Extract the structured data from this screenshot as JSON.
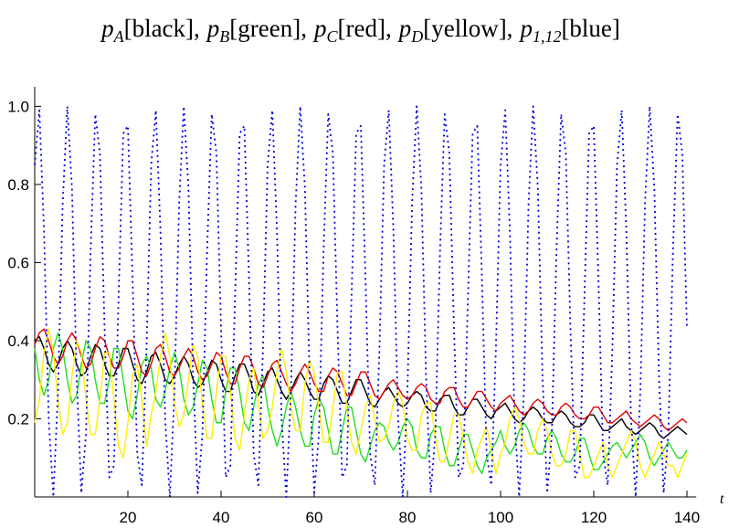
{
  "chart_data": {
    "type": "line",
    "title": [
      [
        "p",
        "A",
        "[black],"
      ],
      [
        "p",
        "B",
        "[green],"
      ],
      [
        "p",
        "C",
        "[red],"
      ],
      [
        "p",
        "D",
        "[yellow],"
      ],
      [
        "p",
        "1,12",
        "[blue]"
      ]
    ],
    "x_label": "t",
    "xlim": [
      0,
      142
    ],
    "xticks": [
      20,
      40,
      60,
      80,
      100,
      120,
      140
    ],
    "ylim": [
      0,
      1.05
    ],
    "yticks": [
      0.2,
      0.4,
      0.6,
      0.8,
      {
        "value": 1.0,
        "label": "1.0"
      }
    ],
    "x": [
      0,
      1,
      2,
      3,
      4,
      5,
      6,
      7,
      8,
      9,
      10,
      11,
      12,
      13,
      14,
      15,
      16,
      17,
      18,
      19,
      20,
      21,
      22,
      23,
      24,
      25,
      26,
      27,
      28,
      29,
      30,
      31,
      32,
      33,
      34,
      35,
      36,
      37,
      38,
      39,
      40,
      41,
      42,
      43,
      44,
      45,
      46,
      47,
      48,
      49,
      50,
      51,
      52,
      53,
      54,
      55,
      56,
      57,
      58,
      59,
      60,
      61,
      62,
      63,
      64,
      65,
      66,
      67,
      68,
      69,
      70,
      71,
      72,
      73,
      74,
      75,
      76,
      77,
      78,
      79,
      80,
      81,
      82,
      83,
      84,
      85,
      86,
      87,
      88,
      89,
      90,
      91,
      92,
      93,
      94,
      95,
      96,
      97,
      98,
      99,
      100,
      101,
      102,
      103,
      104,
      105,
      106,
      107,
      108,
      109,
      110,
      111,
      112,
      113,
      114,
      115,
      116,
      117,
      118,
      119,
      120,
      121,
      122,
      123,
      124,
      125,
      126,
      127,
      128,
      129,
      130,
      131,
      132,
      133,
      134,
      135,
      136,
      137,
      138,
      139,
      140
    ],
    "series": [
      {
        "name": "black",
        "color": "#000000",
        "dashed": false,
        "values": [
          0.4,
          0.41,
          0.38,
          0.34,
          0.32,
          0.34,
          0.38,
          0.4,
          0.38,
          0.34,
          0.31,
          0.32,
          0.36,
          0.39,
          0.38,
          0.34,
          0.31,
          0.31,
          0.34,
          0.38,
          0.38,
          0.34,
          0.3,
          0.29,
          0.32,
          0.36,
          0.37,
          0.34,
          0.3,
          0.29,
          0.31,
          0.34,
          0.36,
          0.34,
          0.3,
          0.28,
          0.29,
          0.32,
          0.35,
          0.34,
          0.3,
          0.27,
          0.27,
          0.31,
          0.34,
          0.34,
          0.31,
          0.27,
          0.26,
          0.29,
          0.32,
          0.33,
          0.3,
          0.27,
          0.25,
          0.27,
          0.3,
          0.32,
          0.3,
          0.27,
          0.25,
          0.25,
          0.29,
          0.31,
          0.3,
          0.27,
          0.24,
          0.24,
          0.27,
          0.3,
          0.3,
          0.27,
          0.24,
          0.23,
          0.25,
          0.27,
          0.28,
          0.26,
          0.24,
          0.23,
          0.24,
          0.26,
          0.27,
          0.26,
          0.23,
          0.22,
          0.22,
          0.25,
          0.26,
          0.26,
          0.23,
          0.21,
          0.21,
          0.23,
          0.25,
          0.25,
          0.23,
          0.21,
          0.2,
          0.22,
          0.23,
          0.24,
          0.22,
          0.2,
          0.19,
          0.2,
          0.22,
          0.23,
          0.22,
          0.2,
          0.19,
          0.19,
          0.21,
          0.22,
          0.21,
          0.19,
          0.18,
          0.18,
          0.19,
          0.21,
          0.21,
          0.19,
          0.17,
          0.17,
          0.18,
          0.19,
          0.2,
          0.18,
          0.17,
          0.16,
          0.17,
          0.18,
          0.19,
          0.18,
          0.16,
          0.15,
          0.16,
          0.17,
          0.18,
          0.17,
          0.16
        ]
      },
      {
        "name": "green",
        "color": "#22dd22",
        "dashed": false,
        "values": [
          0.38,
          0.3,
          0.26,
          0.3,
          0.38,
          0.42,
          0.38,
          0.3,
          0.24,
          0.26,
          0.34,
          0.4,
          0.38,
          0.3,
          0.24,
          0.24,
          0.3,
          0.38,
          0.38,
          0.3,
          0.22,
          0.2,
          0.26,
          0.34,
          0.36,
          0.33,
          0.25,
          0.23,
          0.27,
          0.33,
          0.37,
          0.33,
          0.25,
          0.21,
          0.23,
          0.29,
          0.35,
          0.33,
          0.25,
          0.19,
          0.19,
          0.27,
          0.33,
          0.33,
          0.27,
          0.19,
          0.17,
          0.23,
          0.29,
          0.31,
          0.23,
          0.17,
          0.13,
          0.17,
          0.23,
          0.27,
          0.23,
          0.17,
          0.13,
          0.13,
          0.21,
          0.25,
          0.23,
          0.17,
          0.11,
          0.11,
          0.17,
          0.23,
          0.23,
          0.17,
          0.11,
          0.09,
          0.13,
          0.17,
          0.19,
          0.18,
          0.14,
          0.12,
          0.14,
          0.18,
          0.2,
          0.18,
          0.12,
          0.1,
          0.1,
          0.16,
          0.18,
          0.18,
          0.12,
          0.08,
          0.08,
          0.12,
          0.16,
          0.16,
          0.12,
          0.08,
          0.06,
          0.1,
          0.12,
          0.14,
          0.17,
          0.13,
          0.11,
          0.13,
          0.17,
          0.19,
          0.17,
          0.13,
          0.11,
          0.11,
          0.15,
          0.17,
          0.15,
          0.11,
          0.09,
          0.09,
          0.11,
          0.15,
          0.15,
          0.11,
          0.07,
          0.07,
          0.09,
          0.11,
          0.13,
          0.14,
          0.12,
          0.1,
          0.12,
          0.14,
          0.16,
          0.14,
          0.1,
          0.08,
          0.1,
          0.12,
          0.14,
          0.12,
          0.1,
          0.1,
          0.12
        ]
      },
      {
        "name": "red",
        "color": "#e00000",
        "dashed": false,
        "values": [
          0.39,
          0.42,
          0.43,
          0.4,
          0.36,
          0.34,
          0.36,
          0.4,
          0.42,
          0.4,
          0.36,
          0.33,
          0.34,
          0.38,
          0.41,
          0.4,
          0.36,
          0.33,
          0.33,
          0.36,
          0.4,
          0.4,
          0.36,
          0.32,
          0.31,
          0.34,
          0.38,
          0.39,
          0.36,
          0.32,
          0.31,
          0.33,
          0.36,
          0.38,
          0.36,
          0.32,
          0.3,
          0.31,
          0.34,
          0.37,
          0.36,
          0.32,
          0.29,
          0.29,
          0.33,
          0.36,
          0.36,
          0.33,
          0.29,
          0.28,
          0.31,
          0.34,
          0.35,
          0.32,
          0.29,
          0.27,
          0.29,
          0.32,
          0.34,
          0.32,
          0.29,
          0.27,
          0.27,
          0.31,
          0.33,
          0.32,
          0.29,
          0.26,
          0.26,
          0.29,
          0.32,
          0.32,
          0.29,
          0.26,
          0.25,
          0.27,
          0.29,
          0.3,
          0.28,
          0.26,
          0.25,
          0.26,
          0.28,
          0.29,
          0.28,
          0.25,
          0.24,
          0.24,
          0.27,
          0.28,
          0.28,
          0.25,
          0.23,
          0.23,
          0.25,
          0.27,
          0.27,
          0.25,
          0.23,
          0.22,
          0.24,
          0.25,
          0.26,
          0.24,
          0.22,
          0.21,
          0.22,
          0.24,
          0.25,
          0.24,
          0.22,
          0.21,
          0.21,
          0.23,
          0.24,
          0.23,
          0.21,
          0.2,
          0.2,
          0.21,
          0.23,
          0.23,
          0.21,
          0.19,
          0.19,
          0.2,
          0.21,
          0.22,
          0.2,
          0.19,
          0.18,
          0.19,
          0.2,
          0.21,
          0.2,
          0.18,
          0.17,
          0.18,
          0.19,
          0.2,
          0.19
        ]
      },
      {
        "name": "yellow",
        "color": "#ffee00",
        "dashed": false,
        "values": [
          0.19,
          0.25,
          0.37,
          0.43,
          0.37,
          0.25,
          0.16,
          0.19,
          0.31,
          0.4,
          0.37,
          0.25,
          0.16,
          0.16,
          0.25,
          0.37,
          0.37,
          0.25,
          0.13,
          0.1,
          0.19,
          0.31,
          0.34,
          0.25,
          0.13,
          0.21,
          0.27,
          0.36,
          0.42,
          0.36,
          0.24,
          0.18,
          0.21,
          0.3,
          0.39,
          0.36,
          0.24,
          0.15,
          0.15,
          0.27,
          0.36,
          0.36,
          0.27,
          0.15,
          0.12,
          0.21,
          0.3,
          0.33,
          0.24,
          0.15,
          0.17,
          0.23,
          0.32,
          0.38,
          0.32,
          0.23,
          0.17,
          0.17,
          0.29,
          0.35,
          0.32,
          0.23,
          0.14,
          0.14,
          0.23,
          0.32,
          0.32,
          0.23,
          0.14,
          0.11,
          0.17,
          0.23,
          0.26,
          0.2,
          0.14,
          0.15,
          0.18,
          0.24,
          0.27,
          0.24,
          0.15,
          0.12,
          0.12,
          0.21,
          0.24,
          0.24,
          0.15,
          0.09,
          0.09,
          0.15,
          0.21,
          0.21,
          0.15,
          0.09,
          0.06,
          0.12,
          0.15,
          0.18,
          0.12,
          0.06,
          0.11,
          0.14,
          0.2,
          0.23,
          0.2,
          0.14,
          0.11,
          0.11,
          0.17,
          0.2,
          0.17,
          0.11,
          0.08,
          0.08,
          0.11,
          0.17,
          0.17,
          0.11,
          0.05,
          0.05,
          0.08,
          0.11,
          0.14,
          0.08,
          0.05,
          0.08,
          0.11,
          0.14,
          0.17,
          0.14,
          0.08,
          0.05,
          0.08,
          0.11,
          0.14,
          0.11,
          0.08,
          0.08,
          0.05,
          0.08,
          0.11
        ]
      },
      {
        "name": "blue",
        "color": "#0000dd",
        "dashed": true,
        "values": [
          0.85,
          0.99,
          0.68,
          0.2,
          0,
          0.27,
          0.75,
          1,
          0.79,
          0.31,
          0.01,
          0.16,
          0.63,
          0.98,
          0.88,
          0.43,
          0.05,
          0.08,
          0.51,
          0.93,
          0.95,
          0.56,
          0.11,
          0.03,
          0.38,
          0.85,
          0.99,
          0.68,
          0.2,
          0,
          0.27,
          0.75,
          1,
          0.79,
          0.31,
          0.01,
          0.16,
          0.63,
          0.98,
          0.88,
          0.43,
          0.05,
          0.08,
          0.51,
          0.93,
          0.95,
          0.56,
          0.11,
          0.03,
          0.38,
          0.85,
          0.99,
          0.68,
          0.2,
          0,
          0.27,
          0.75,
          1,
          0.79,
          0.31,
          0.01,
          0.16,
          0.63,
          0.98,
          0.88,
          0.43,
          0.05,
          0.08,
          0.51,
          0.93,
          0.95,
          0.56,
          0.11,
          0.03,
          0.38,
          0.85,
          0.99,
          0.68,
          0.2,
          0,
          0.27,
          0.75,
          1,
          0.79,
          0.31,
          0.01,
          0.16,
          0.63,
          0.98,
          0.88,
          0.43,
          0.05,
          0.08,
          0.51,
          0.93,
          0.95,
          0.56,
          0.11,
          0.03,
          0.38,
          0.85,
          0.99,
          0.68,
          0.2,
          0,
          0.27,
          0.75,
          1,
          0.79,
          0.31,
          0.01,
          0.16,
          0.63,
          0.98,
          0.88,
          0.43,
          0.05,
          0.08,
          0.51,
          0.93,
          0.95,
          0.56,
          0.11,
          0.03,
          0.38,
          0.85,
          0.99,
          0.68,
          0.2,
          0,
          0.27,
          0.75,
          1,
          0.79,
          0.31,
          0.01,
          0.16,
          0.63,
          0.98,
          0.88,
          0.43
        ]
      }
    ]
  }
}
